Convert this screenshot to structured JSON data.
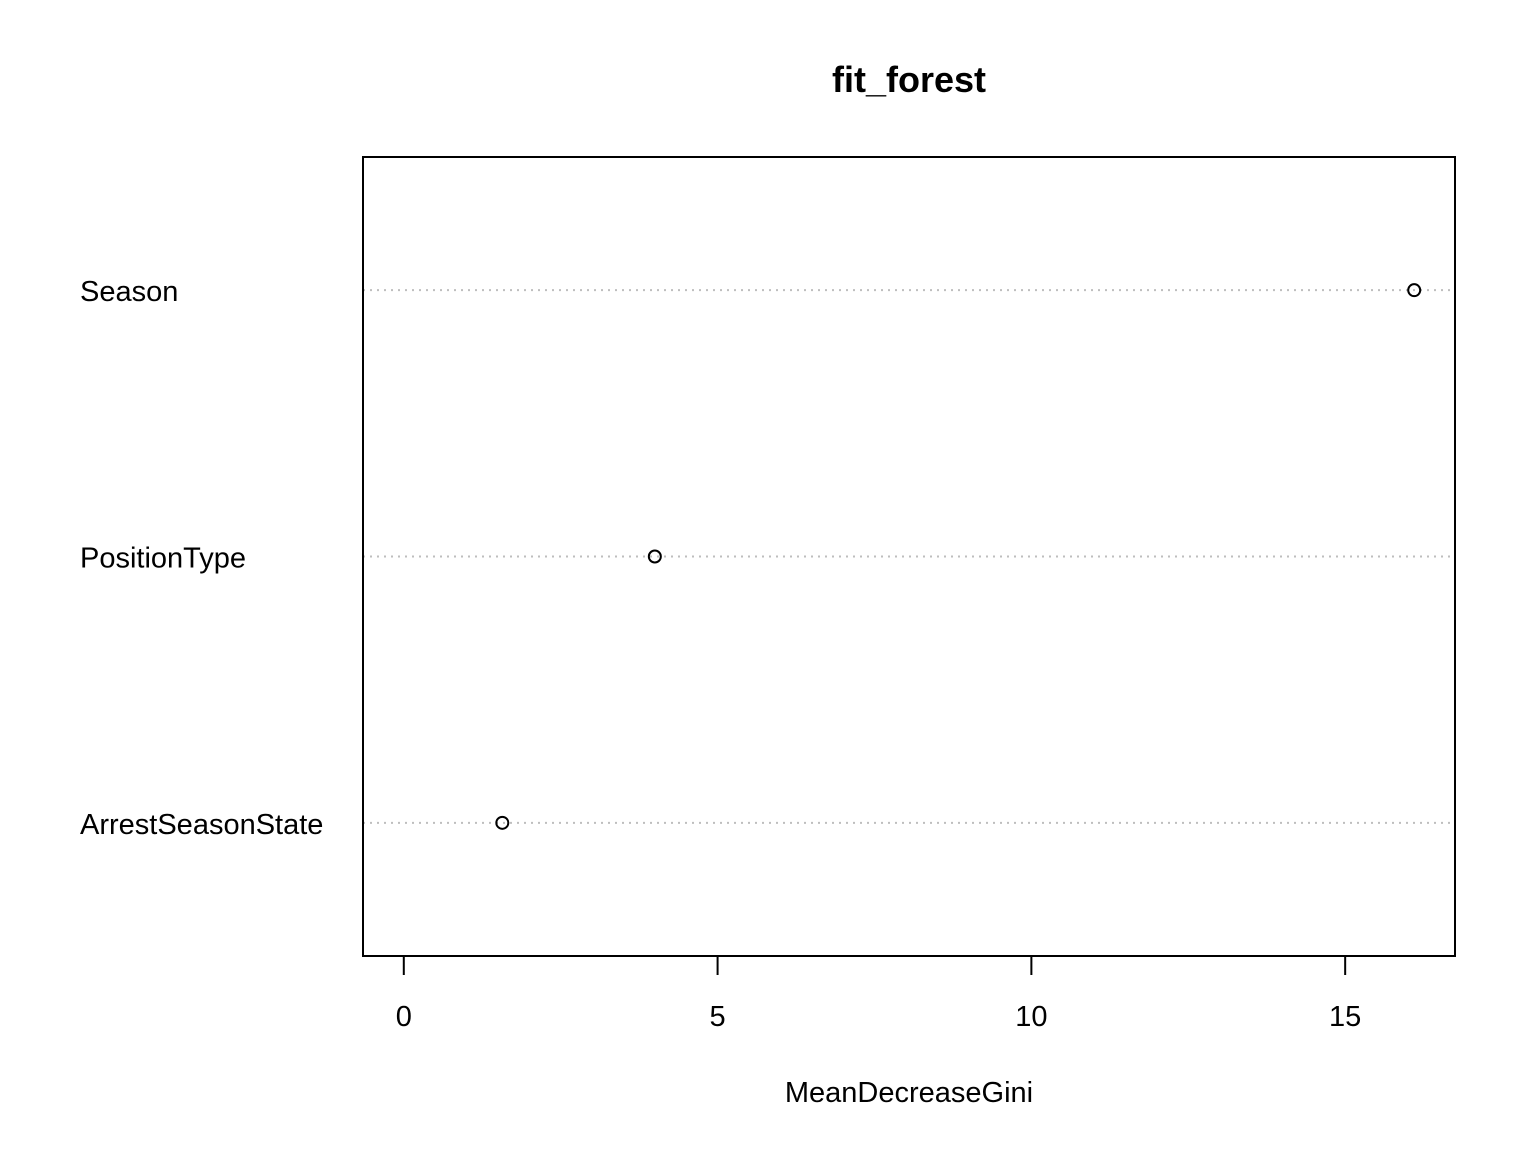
{
  "chart_data": {
    "type": "scatter",
    "title": "fit_forest",
    "xlabel": "MeanDecreaseGini",
    "ylabel": "",
    "xlim": [
      -0.65,
      16.75
    ],
    "x_ticks": [
      "0",
      "5",
      "10",
      "15"
    ],
    "grid": "dotted horizontal lines per variable",
    "legend": "none",
    "categories": [
      "Season",
      "PositionType",
      "ArrestSeasonState"
    ],
    "values": [
      16.1,
      4.0,
      1.57
    ],
    "colors": {
      "point": "#000000",
      "grid": "#bebebe",
      "axis": "#000000"
    }
  }
}
